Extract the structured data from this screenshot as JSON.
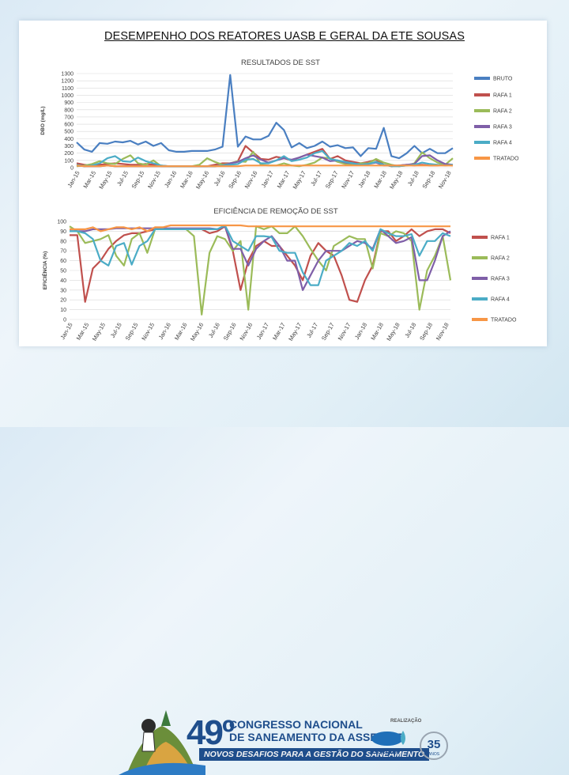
{
  "slide": {
    "title": "DESEMPENHO DOS REATORES UASB E GERAL DA ETE SOUSAS"
  },
  "footer": {
    "congress_number": "49º",
    "congress_line1": "CONGRESSO NACIONAL",
    "congress_line2": "DE SANEAMENTO DA ASSEMAE",
    "congress_subtitle": "NOVOS DESAFIOS PARA A GESTÃO DO SANEAMENTO",
    "realizacao": "REALIZAÇÃO",
    "assemae_label": "assemae",
    "anniversary": "35",
    "anniversary_label": "ANOS"
  },
  "colors": {
    "BRUTO": "#4a7fc1",
    "RAFA 1": "#c0504d",
    "RAFA 2": "#9bbb59",
    "RAFA 3": "#7f5fa8",
    "RAFA 4": "#4bacc6",
    "TRATADO": "#f79646"
  },
  "chart_data": [
    {
      "type": "line",
      "title": "RESULTADOS DE SST",
      "ylabel": "DBO (mg/L)",
      "xlabel": "",
      "ylim": [
        0,
        1300
      ],
      "yticks": [
        0,
        100,
        200,
        300,
        400,
        500,
        600,
        700,
        800,
        900,
        1000,
        1100,
        1200,
        1300
      ],
      "grid": true,
      "legend_position": "right",
      "x_ticks": [
        "Jan-15",
        "Mar-15",
        "May-15",
        "Jul-15",
        "Sep-15",
        "Nov-15",
        "Jan-16",
        "Mar-16",
        "May-16",
        "Jul-16",
        "Sep-16",
        "Nov-16",
        "Jan-17",
        "Mar-17",
        "May-17",
        "Jul-17",
        "Sep-17",
        "Nov-17",
        "Jan-18",
        "Mar-18",
        "May-18",
        "Jul-18",
        "Sep-18",
        "Nov-18"
      ],
      "series": [
        {
          "name": "BRUTO",
          "values": [
            350,
            250,
            220,
            340,
            330,
            360,
            350,
            370,
            320,
            360,
            300,
            340,
            240,
            220,
            220,
            230,
            230,
            230,
            250,
            290,
            1280,
            290,
            430,
            390,
            390,
            440,
            620,
            520,
            280,
            340,
            270,
            300,
            360,
            290,
            310,
            270,
            280,
            160,
            270,
            260,
            550,
            160,
            130,
            200,
            300,
            200,
            260,
            200,
            200,
            270
          ]
        },
        {
          "name": "RAFA 1",
          "values": [
            60,
            40,
            30,
            40,
            50,
            60,
            50,
            40,
            40,
            50,
            40,
            30,
            20,
            20,
            20,
            20,
            20,
            20,
            40,
            60,
            60,
            90,
            300,
            210,
            120,
            110,
            150,
            130,
            100,
            140,
            180,
            220,
            260,
            120,
            160,
            100,
            80,
            60,
            80,
            110,
            40,
            20,
            30,
            40,
            30,
            40,
            30,
            30,
            40,
            30
          ]
        },
        {
          "name": "RAFA 2",
          "values": [
            20,
            30,
            50,
            90,
            60,
            50,
            120,
            170,
            60,
            40,
            100,
            20,
            20,
            20,
            20,
            20,
            40,
            130,
            80,
            40,
            60,
            90,
            80,
            220,
            40,
            30,
            30,
            60,
            30,
            20,
            40,
            70,
            140,
            130,
            80,
            50,
            40,
            60,
            60,
            120,
            70,
            40,
            20,
            30,
            60,
            210,
            130,
            70,
            40,
            130
          ]
        },
        {
          "name": "RAFA 3",
          "values": [
            30,
            20,
            20,
            20,
            30,
            20,
            20,
            20,
            20,
            20,
            20,
            20,
            20,
            20,
            20,
            20,
            20,
            20,
            20,
            30,
            60,
            80,
            130,
            170,
            110,
            70,
            100,
            130,
            110,
            140,
            180,
            160,
            140,
            90,
            100,
            70,
            60,
            40,
            50,
            70,
            30,
            30,
            30,
            40,
            50,
            160,
            170,
            100,
            50,
            40
          ]
        },
        {
          "name": "RAFA 4",
          "values": [
            40,
            20,
            30,
            60,
            130,
            160,
            90,
            80,
            140,
            90,
            60,
            30,
            20,
            20,
            20,
            20,
            20,
            20,
            20,
            30,
            40,
            50,
            110,
            120,
            60,
            60,
            100,
            160,
            90,
            110,
            140,
            200,
            230,
            120,
            100,
            80,
            60,
            40,
            50,
            80,
            40,
            20,
            20,
            30,
            40,
            70,
            50,
            40,
            30,
            40
          ]
        },
        {
          "name": "TRATADO",
          "values": [
            30,
            20,
            20,
            20,
            30,
            20,
            20,
            20,
            20,
            20,
            20,
            20,
            20,
            20,
            20,
            20,
            20,
            20,
            20,
            20,
            20,
            20,
            30,
            30,
            30,
            30,
            30,
            30,
            30,
            30,
            30,
            30,
            30,
            30,
            30,
            30,
            30,
            30,
            30,
            30,
            30,
            30,
            30,
            30,
            30,
            30,
            30,
            30,
            30,
            30
          ]
        }
      ]
    },
    {
      "type": "line",
      "title": "EFICIÊNCIA DE REMOÇÃO DE SST",
      "ylabel": "EFICIÊNCIA (%)",
      "xlabel": "",
      "ylim": [
        0,
        100
      ],
      "yticks": [
        0,
        10,
        20,
        30,
        40,
        50,
        60,
        70,
        80,
        90,
        100
      ],
      "grid": true,
      "legend_position": "right",
      "x_ticks": [
        "Jan-15",
        "Mar-15",
        "May-15",
        "Jul-15",
        "Sep-15",
        "Nov-15",
        "Jan-16",
        "Mar-16",
        "May-16",
        "Jul-16",
        "Sep-16",
        "Nov-16",
        "Jan-17",
        "Mar-17",
        "May-17",
        "Jul-17",
        "Sep-17",
        "Nov-17",
        "Jan-18",
        "Mar-18",
        "May-18",
        "Jul-18",
        "Sep-18",
        "Nov-18"
      ],
      "series": [
        {
          "name": "RAFA 1",
          "values": [
            86,
            86,
            18,
            52,
            60,
            72,
            80,
            86,
            88,
            88,
            90,
            92,
            92,
            92,
            92,
            92,
            92,
            92,
            88,
            90,
            95,
            70,
            30,
            60,
            75,
            80,
            75,
            75,
            65,
            55,
            40,
            65,
            78,
            70,
            65,
            45,
            20,
            18,
            40,
            55,
            90,
            90,
            80,
            85,
            92,
            85,
            90,
            92,
            92,
            88
          ]
        },
        {
          "name": "RAFA 2",
          "values": [
            95,
            90,
            78,
            80,
            82,
            86,
            65,
            55,
            82,
            88,
            68,
            92,
            92,
            92,
            92,
            92,
            85,
            5,
            68,
            85,
            82,
            70,
            80,
            10,
            95,
            92,
            95,
            88,
            88,
            95,
            85,
            72,
            60,
            50,
            75,
            80,
            85,
            82,
            82,
            52,
            88,
            85,
            90,
            88,
            80,
            10,
            50,
            65,
            85,
            40
          ]
        },
        {
          "name": "RAFA 3",
          "values": [
            90,
            90,
            90,
            92,
            92,
            92,
            93,
            93,
            93,
            93,
            93,
            93,
            93,
            93,
            93,
            93,
            93,
            93,
            93,
            92,
            95,
            72,
            72,
            55,
            72,
            80,
            85,
            75,
            60,
            60,
            30,
            45,
            60,
            70,
            70,
            70,
            75,
            80,
            78,
            72,
            92,
            85,
            78,
            80,
            84,
            40,
            40,
            60,
            85,
            90
          ]
        },
        {
          "name": "RAFA 4",
          "values": [
            90,
            90,
            88,
            82,
            60,
            55,
            75,
            78,
            56,
            75,
            80,
            92,
            92,
            92,
            92,
            92,
            92,
            92,
            92,
            92,
            96,
            80,
            75,
            70,
            85,
            85,
            84,
            70,
            68,
            68,
            48,
            35,
            35,
            60,
            65,
            70,
            78,
            75,
            80,
            70,
            92,
            88,
            85,
            85,
            87,
            65,
            80,
            80,
            88,
            85
          ]
        },
        {
          "name": "TRATADO",
          "values": [
            92,
            92,
            92,
            94,
            90,
            92,
            94,
            94,
            92,
            94,
            90,
            94,
            94,
            96,
            96,
            96,
            96,
            96,
            96,
            96,
            96,
            96,
            96,
            95,
            95,
            95,
            95,
            95,
            95,
            95,
            95,
            95,
            95,
            95,
            95,
            95,
            95,
            95,
            95,
            95,
            95,
            95,
            95,
            95,
            95,
            95,
            95,
            95,
            95,
            95
          ]
        }
      ]
    }
  ]
}
